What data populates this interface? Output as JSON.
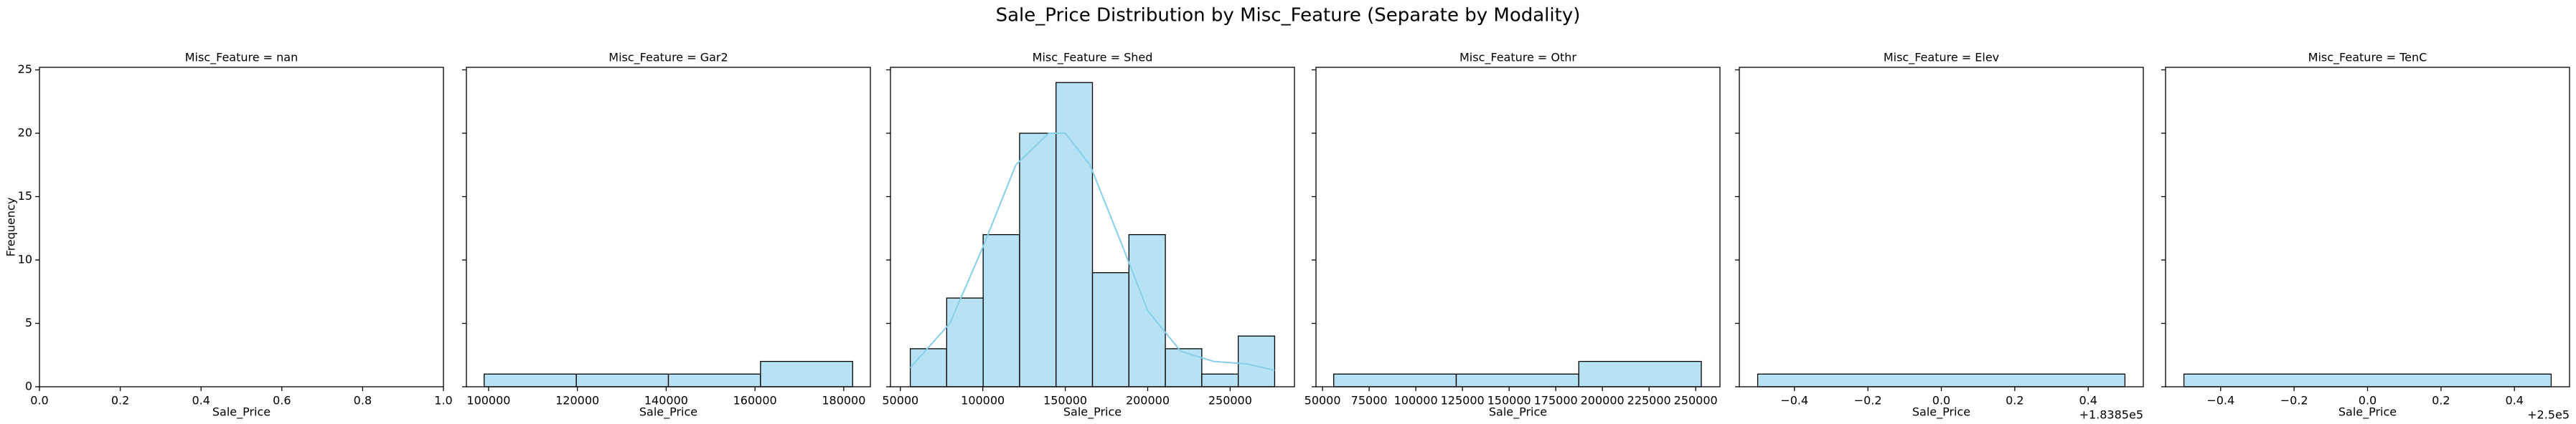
{
  "title": "Sale_Price Distribution by Misc_Feature (Separate by Modality)",
  "chart_data": [
    {
      "type": "histogram",
      "title": "Misc_Feature = nan",
      "x_label": "Sale_Price",
      "y_label": "Frequency",
      "bins": [],
      "counts": [],
      "color": "#87ceeb",
      "xlim": [
        0,
        1
      ],
      "ylim": [
        0,
        25.2
      ],
      "xticks": [
        {
          "value": 0,
          "label": "0.0"
        },
        {
          "value": 0.2,
          "label": "0.2"
        },
        {
          "value": 0.4,
          "label": "0.4"
        },
        {
          "value": 0.6,
          "label": "0.6"
        },
        {
          "value": 0.8,
          "label": "0.8"
        },
        {
          "value": 1,
          "label": "1.0"
        }
      ],
      "yticks": [
        0,
        5,
        10,
        15,
        20,
        25
      ]
    },
    {
      "type": "histogram",
      "title": "Misc_Feature = Gar2",
      "x_label": "Sale_Price",
      "bins": [
        99000,
        119750,
        140500,
        161250,
        182000
      ],
      "counts": [
        1,
        1,
        1,
        2
      ],
      "color": "#87ceeb",
      "xlim": [
        95000,
        186000
      ],
      "ylim": [
        0,
        25.2
      ],
      "xticks": [
        100000,
        120000,
        140000,
        160000,
        180000
      ]
    },
    {
      "type": "histogram",
      "title": "Misc_Feature = Shed",
      "x_label": "Sale_Price",
      "bins": [
        56000,
        78100,
        100200,
        122300,
        144400,
        166500,
        188600,
        210700,
        232800,
        254900,
        277000
      ],
      "counts": [
        3,
        7,
        12,
        20,
        24,
        9,
        12,
        3,
        1,
        4
      ],
      "color": "#87ceeb",
      "kde": {
        "x": [
          56000,
          80000,
          100000,
          120000,
          140000,
          150000,
          165000,
          185000,
          200000,
          220000,
          240000,
          260000,
          277000
        ],
        "y": [
          1.5,
          5,
          11,
          17.5,
          20,
          20,
          17.5,
          11,
          6,
          2.8,
          2,
          1.8,
          1.3
        ]
      },
      "xlim": [
        44000,
        289000
      ],
      "ylim": [
        0,
        25.2
      ],
      "xticks": [
        50000,
        100000,
        150000,
        200000,
        250000
      ]
    },
    {
      "type": "histogram",
      "title": "Misc_Feature = Othr",
      "x_label": "Sale_Price",
      "bins": [
        56000,
        121667,
        187333,
        253000
      ],
      "counts": [
        1,
        1,
        2
      ],
      "color": "#87ceeb",
      "xlim": [
        46500,
        263000
      ],
      "ylim": [
        0,
        25.2
      ],
      "xticks": [
        50000,
        75000,
        100000,
        125000,
        150000,
        175000,
        200000,
        225000,
        250000
      ]
    },
    {
      "type": "histogram",
      "title": "Misc_Feature = Elev",
      "x_label": "Sale_Price",
      "x_offset_label": "+1.8385e5",
      "bins": [
        183849.5,
        183850.5
      ],
      "counts": [
        1
      ],
      "color": "#87ceeb",
      "xlim": [
        183849.45,
        183850.55
      ],
      "ylim": [
        0,
        25.2
      ],
      "xticks": [
        {
          "value": 183849.6,
          "label": "−0.4"
        },
        {
          "value": 183849.8,
          "label": "−0.2"
        },
        {
          "value": 183850,
          "label": "0.0"
        },
        {
          "value": 183850.2,
          "label": "0.2"
        },
        {
          "value": 183850.4,
          "label": "0.4"
        }
      ]
    },
    {
      "type": "histogram",
      "title": "Misc_Feature = TenC",
      "x_label": "Sale_Price",
      "x_offset_label": "+2.5e5",
      "bins": [
        249999.5,
        250000.5
      ],
      "counts": [
        1
      ],
      "color": "#87ceeb",
      "xlim": [
        249999.45,
        250000.55
      ],
      "ylim": [
        0,
        25.2
      ],
      "xticks": [
        {
          "value": 249999.6,
          "label": "−0.4"
        },
        {
          "value": 249999.8,
          "label": "−0.2"
        },
        {
          "value": 250000,
          "label": "0.0"
        },
        {
          "value": 250000.2,
          "label": "0.2"
        },
        {
          "value": 250000.4,
          "label": "0.4"
        }
      ]
    }
  ]
}
